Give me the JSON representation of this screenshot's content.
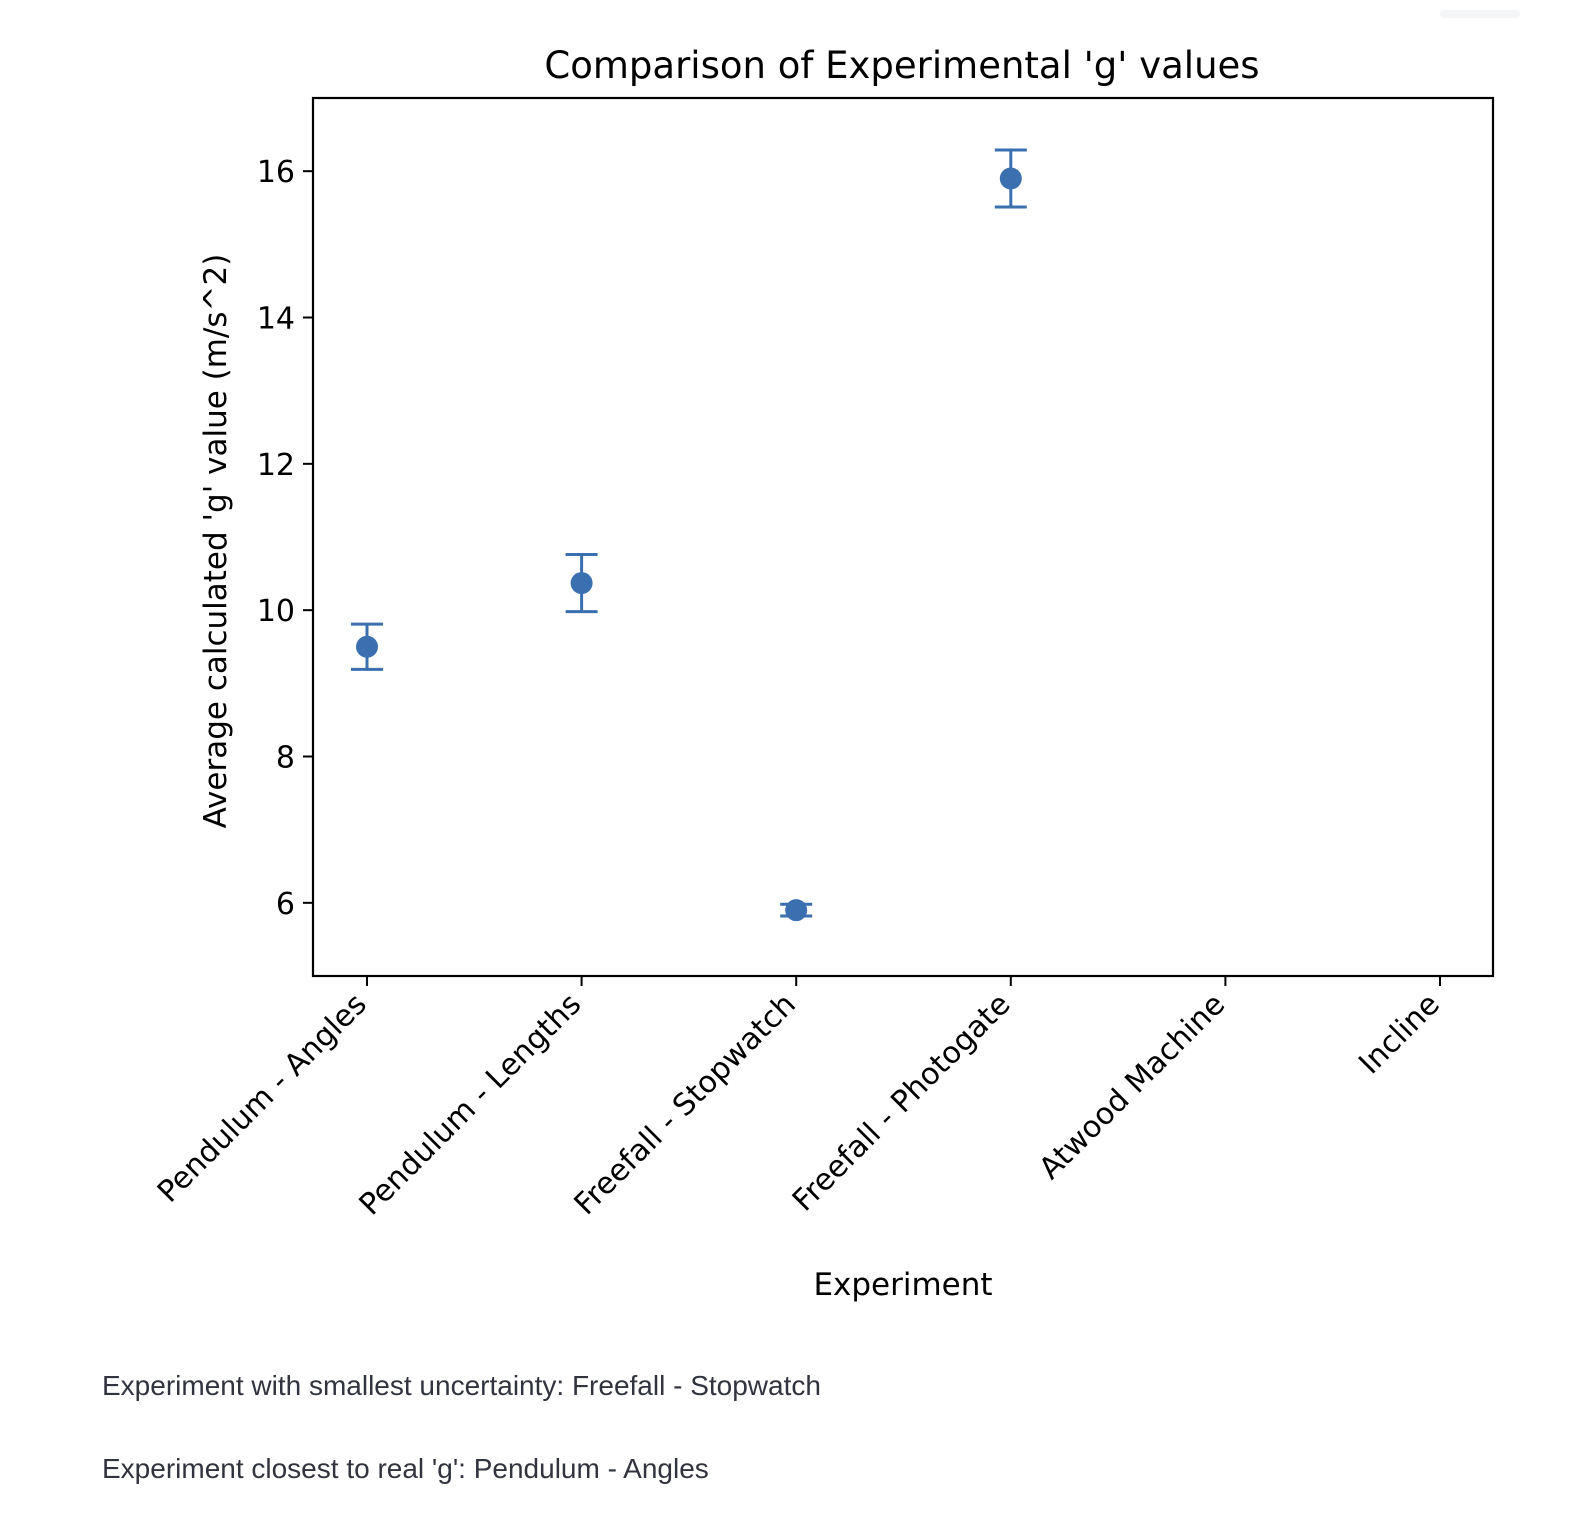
{
  "chart_data": {
    "type": "scatter",
    "title": "Comparison of Experimental 'g' values",
    "xlabel": "Experiment",
    "ylabel": "Average calculated 'g' value (m/s^2)",
    "categories": [
      "Pendulum - Angles",
      "Pendulum - Lengths",
      "Freefall - Stopwatch",
      "Freefall - Photogate",
      "Atwood Machine",
      "Incline"
    ],
    "values": [
      9.5,
      10.37,
      5.9,
      15.9,
      null,
      null
    ],
    "errors": [
      0.31,
      0.39,
      0.08,
      0.39,
      null,
      null
    ],
    "ylim": [
      5.0,
      17.0
    ],
    "yticks": [
      6,
      8,
      10,
      12,
      14,
      16
    ],
    "grid": false,
    "marker_color": "#3a70b0"
  },
  "notes": {
    "smallest_uncertainty": "Experiment with smallest uncertainty: Freefall - Stopwatch",
    "closest_to_real": "Experiment closest to real 'g': Pendulum - Angles"
  }
}
